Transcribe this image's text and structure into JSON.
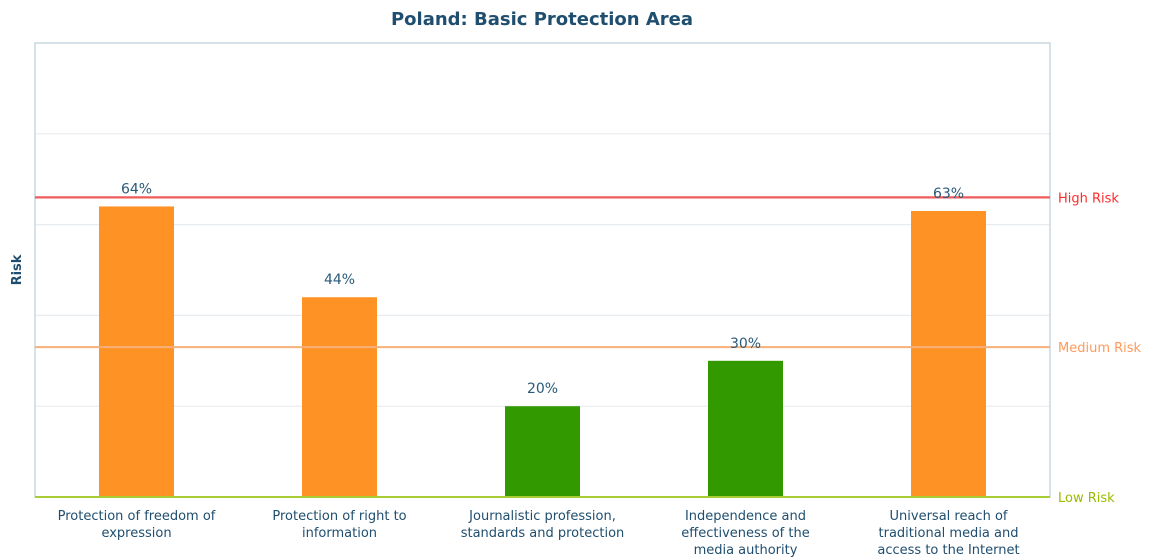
{
  "colors": {
    "title": "#1f4e6e",
    "axis_frame": "#c9d8e0",
    "grid": "#e6ecef",
    "medium_bar": "#ff9225",
    "low_bar": "#339900",
    "high_line": "#f05a5a",
    "medium_line": "#f7b07a",
    "low_line": "#a8cc33",
    "high_text": "#ff2a2a",
    "medium_text": "#ff9a5a",
    "low_text": "#99bb00"
  },
  "chart_data": {
    "type": "bar",
    "title": "Poland: Basic Protection Area",
    "ylabel": "Risk",
    "xlabel": "",
    "ylim": [
      0,
      100
    ],
    "grid": true,
    "categories": [
      [
        "Protection of freedom of",
        "expression"
      ],
      [
        "Protection of right to",
        "information"
      ],
      [
        "Journalistic profession,",
        "standards and protection"
      ],
      [
        "Independence and",
        "effectiveness of the",
        "media authority"
      ],
      [
        "Universal reach of",
        "traditional media and",
        "access to the Internet"
      ]
    ],
    "values": [
      64,
      44,
      20,
      30,
      63
    ],
    "value_labels": [
      "64%",
      "44%",
      "20%",
      "30%",
      "63%"
    ],
    "risk_levels": [
      "medium",
      "medium",
      "low",
      "low",
      "medium"
    ],
    "thresholds": [
      {
        "label": "High Risk",
        "value": 66,
        "level": "high"
      },
      {
        "label": "Medium Risk",
        "value": 33,
        "level": "medium"
      },
      {
        "label": "Low Risk",
        "value": 0,
        "level": "low"
      }
    ],
    "gridlines": [
      0,
      20,
      40,
      60,
      80,
      100
    ]
  }
}
